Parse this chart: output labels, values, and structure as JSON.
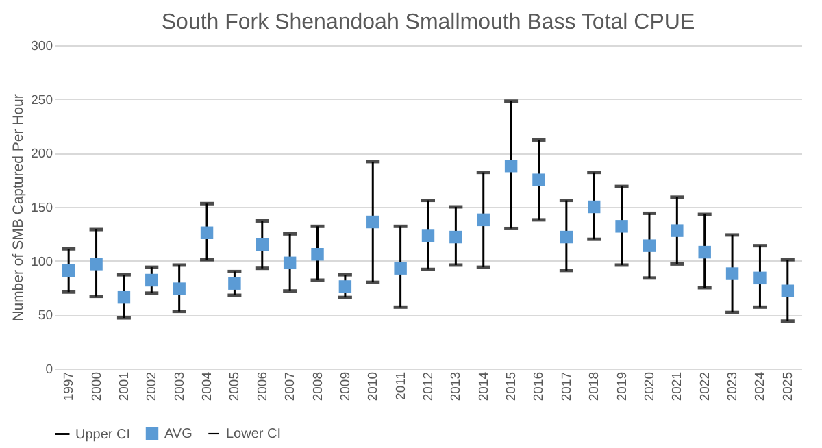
{
  "chart_data": {
    "type": "scatter",
    "title": "South Fork Shenandoah Smallmouth Bass Total CPUE",
    "ylabel": "Number of SMB Captured Per Hour",
    "categories": [
      "1997",
      "2000",
      "2001",
      "2002",
      "2003",
      "2004",
      "2005",
      "2006",
      "2007",
      "2008",
      "2009",
      "2010",
      "2011",
      "2012",
      "2013",
      "2014",
      "2015",
      "2016",
      "2017",
      "2018",
      "2019",
      "2020",
      "2021",
      "2022",
      "2023",
      "2024",
      "2025"
    ],
    "series": [
      {
        "name": "Upper CI",
        "color": "#000000",
        "marker": "none",
        "values": [
          null,
          null,
          null,
          null,
          null,
          null,
          null,
          null,
          null,
          null,
          null,
          null,
          null,
          null,
          null,
          null,
          null,
          null,
          null,
          null,
          null,
          null,
          null,
          null,
          null,
          null,
          null
        ]
      },
      {
        "name": "AVG",
        "color": "#5b9bd5",
        "marker": "square",
        "values": [
          91,
          97,
          66,
          82,
          74,
          126,
          79,
          115,
          98,
          106,
          76,
          136,
          93,
          123,
          122,
          138,
          188,
          175,
          122,
          150,
          132,
          114,
          128,
          108,
          88,
          84,
          72
        ],
        "errors": [
          [
            71,
            111
          ],
          [
            67,
            129
          ],
          [
            47,
            87
          ],
          [
            70,
            94
          ],
          [
            53,
            96
          ],
          [
            101,
            153
          ],
          [
            68,
            90
          ],
          [
            93,
            137
          ],
          [
            72,
            125
          ],
          [
            82,
            132
          ],
          [
            66,
            87
          ],
          [
            80,
            192
          ],
          [
            57,
            132
          ],
          [
            92,
            156
          ],
          [
            96,
            150
          ],
          [
            94,
            182
          ],
          [
            130,
            248
          ],
          [
            138,
            212
          ],
          [
            91,
            156
          ],
          [
            120,
            182
          ],
          [
            96,
            169
          ],
          [
            84,
            144
          ],
          [
            97,
            159
          ],
          [
            75,
            143
          ],
          [
            52,
            124
          ],
          [
            57,
            114
          ],
          [
            44,
            101
          ]
        ]
      },
      {
        "name": "Lower CI",
        "color": "#000000",
        "marker": "none",
        "values": [
          null,
          null,
          null,
          null,
          null,
          null,
          null,
          null,
          null,
          null,
          null,
          null,
          null,
          null,
          null,
          null,
          null,
          null,
          null,
          null,
          null,
          null,
          null,
          null,
          null,
          null,
          null
        ]
      }
    ],
    "ylim": [
      0,
      300
    ],
    "yticks": [
      0,
      50,
      100,
      150,
      200,
      250,
      300
    ],
    "grid": "y",
    "legend": "bottom"
  }
}
